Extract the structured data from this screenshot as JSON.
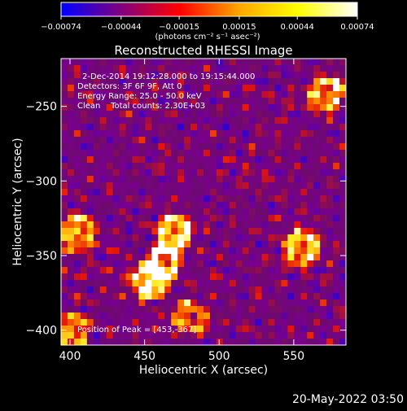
{
  "chart_data": {
    "type": "heatmap",
    "title": "Reconstructed RHESSI Image",
    "xlabel": "Heliocentric X (arcsec)",
    "ylabel": "Heliocentric Y (arcsec)",
    "xlim": [
      394,
      585
    ],
    "ylim": [
      -410,
      -218
    ],
    "x_ticks": [
      "400",
      "450",
      "500",
      "550"
    ],
    "x_tick_values": [
      400,
      450,
      500,
      550
    ],
    "y_ticks": [
      "−250",
      "−300",
      "−350",
      "−400"
    ],
    "y_tick_values": [
      -250,
      -300,
      -350,
      -400
    ],
    "colorbar": {
      "range": [
        -0.00074,
        0.00074
      ],
      "tick_labels": [
        "−0.00074",
        "−0.00044",
        "−0.00015",
        "0.00015",
        "0.00044",
        "0.00074"
      ],
      "tick_values": [
        -0.00074,
        -0.00044,
        -0.00015,
        0.00015,
        0.00044,
        0.00074
      ],
      "unit_label": "(photons cm⁻² s⁻¹ asec⁻²)",
      "colormap": [
        "#0000ff",
        "#800080",
        "#ff0000",
        "#ffa500",
        "#ffff00",
        "#ffffff"
      ]
    },
    "annotations": {
      "time": "2-Dec-2014 19:12:28.000 to 19:15:44.000",
      "detectors": "Detectors: 3F 6F 9F, Att 0",
      "energy": "Energy Range: 25.0 - 50.0 keV",
      "clean": "Clean    Total counts: 2.30E+03",
      "peak": "Position of Peak = [453,-367]"
    },
    "peak": [
      453,
      -367
    ],
    "sources": [
      {
        "x": 453,
        "y": -367,
        "value": 0.00074
      },
      {
        "x": 462,
        "y": -355,
        "value": 0.0007
      },
      {
        "x": 470,
        "y": -335,
        "value": 0.00068
      },
      {
        "x": 405,
        "y": -335,
        "value": 0.0006
      },
      {
        "x": 400,
        "y": -400,
        "value": 0.00055
      },
      {
        "x": 555,
        "y": -345,
        "value": 0.00065
      },
      {
        "x": 572,
        "y": -242,
        "value": 0.0006
      },
      {
        "x": 480,
        "y": -392,
        "value": 0.0005
      }
    ]
  },
  "footer": {
    "date": "20-May-2022 03:50"
  }
}
